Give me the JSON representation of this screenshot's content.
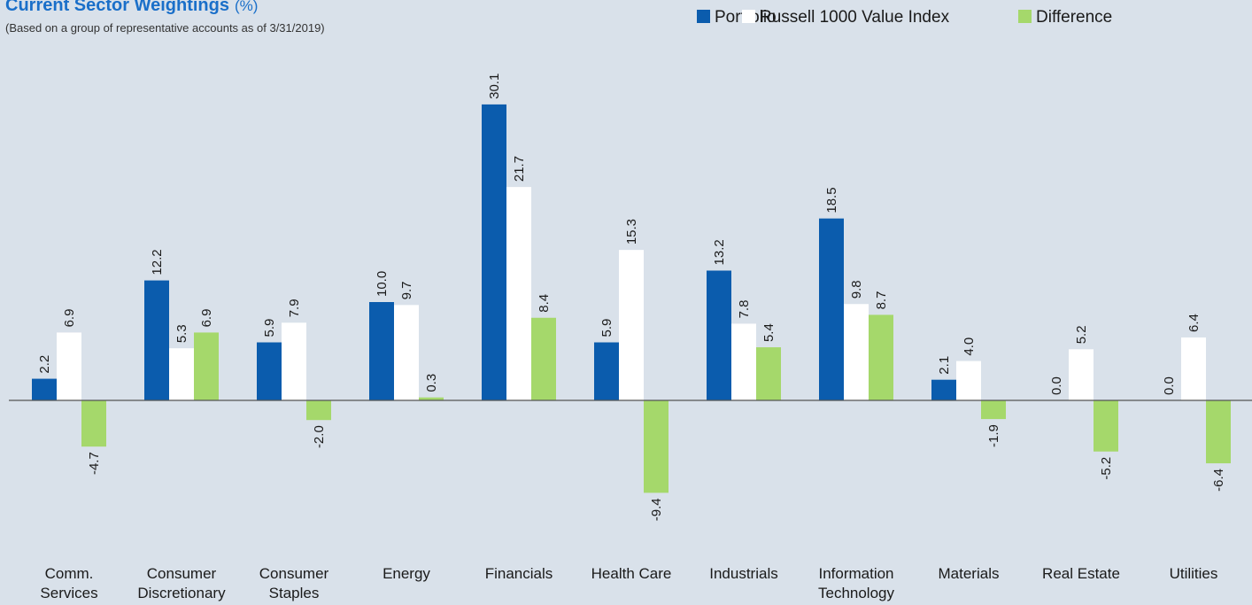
{
  "chart_data": {
    "type": "bar",
    "title": "Current Sector Weightings",
    "title_unit": "(%)",
    "subtitle": "(Based on a group of representative accounts as of 3/31/2019)",
    "legend": "top-right",
    "categories": [
      [
        "Comm.",
        "Services"
      ],
      [
        "Consumer",
        "Discretionary"
      ],
      [
        "Consumer",
        "Staples"
      ],
      [
        "Energy"
      ],
      [
        "Financials"
      ],
      [
        "Health Care"
      ],
      [
        "Industrials"
      ],
      [
        "Information",
        "Technology"
      ],
      [
        "Materials"
      ],
      [
        "Real Estate"
      ],
      [
        "Utilities"
      ]
    ],
    "series": [
      {
        "name": "Portfolio",
        "color": "#0b5cad",
        "values": [
          2.2,
          12.2,
          5.9,
          10,
          30.1,
          5.9,
          13.2,
          18.5,
          2.1,
          0,
          0
        ],
        "value_labels": [
          "2.2",
          "12.2",
          "5.9",
          "10.0",
          "30.1",
          "5.9",
          "13.2",
          "18.5",
          "2.1",
          "0.0",
          "0.0"
        ]
      },
      {
        "name": "Russell 1000 Value Index",
        "color": "#ffffff",
        "values": [
          6.9,
          5.3,
          7.9,
          9.7,
          21.7,
          15.3,
          7.8,
          9.8,
          4,
          5.2,
          6.4
        ],
        "value_labels": [
          "6.9",
          "5.3",
          "7.9",
          "9.7",
          "21.7",
          "15.3",
          "7.8",
          "9.8",
          "4.0",
          "5.2",
          "6.4"
        ]
      },
      {
        "name": "Difference",
        "color": "#a5d86b",
        "values": [
          -4.7,
          6.9,
          -2,
          0.3,
          8.4,
          -9.4,
          5.4,
          8.7,
          -1.9,
          -5.2,
          -6.4
        ],
        "value_labels": [
          "-4.7",
          "6.9",
          "-2.0",
          "0.3",
          "8.4",
          "-9.4",
          "5.4",
          "8.7",
          "-1.9",
          "-5.2",
          "-6.4"
        ]
      }
    ]
  }
}
